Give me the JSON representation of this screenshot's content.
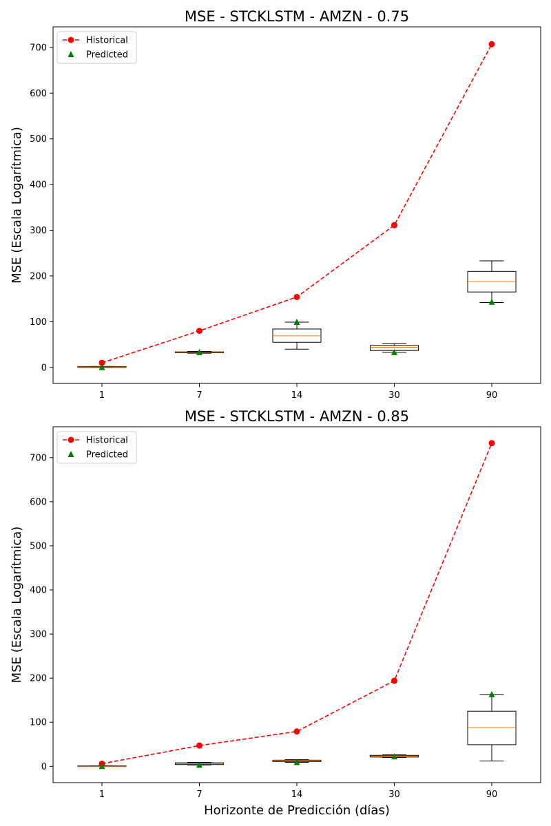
{
  "figure": {
    "xlabel": "Horizonte de Predicción (días)"
  },
  "colors": {
    "historical": "#ff0000",
    "predicted": "#008000",
    "median": "#ff7f0e",
    "box": "#000000"
  },
  "legend": {
    "placement": "top-left",
    "historical_label": "Historical",
    "predicted_label": "Predicted"
  },
  "chart_data": [
    {
      "type": "line",
      "title": "MSE - STCKLSTM - AMZN - 0.75",
      "ylabel": "MSE (Escala Logarítmica)",
      "xlabel": "",
      "categories": [
        "1",
        "7",
        "14",
        "30",
        "90"
      ],
      "ylim": [
        -35,
        745
      ],
      "yticks": [
        0,
        100,
        200,
        300,
        400,
        500,
        600,
        700
      ],
      "grid": false,
      "series": [
        {
          "name": "Historical",
          "style": "dashed-line-circle",
          "values": [
            10,
            80,
            154,
            311,
            707
          ]
        },
        {
          "name": "Predicted",
          "style": "triangle-markers",
          "values": [
            0,
            33,
            99,
            33,
            143
          ]
        }
      ],
      "boxplots": [
        {
          "category": "1",
          "whisker_low": 0,
          "q1": 0,
          "median": 1,
          "q3": 2,
          "whisker_high": 2
        },
        {
          "category": "7",
          "whisker_low": 31,
          "q1": 32,
          "median": 33,
          "q3": 34,
          "whisker_high": 35
        },
        {
          "category": "14",
          "whisker_low": 40,
          "q1": 55,
          "median": 69,
          "q3": 84,
          "whisker_high": 99
        },
        {
          "category": "30",
          "whisker_low": 33,
          "q1": 37,
          "median": 44,
          "q3": 48,
          "whisker_high": 52
        },
        {
          "category": "90",
          "whisker_low": 142,
          "q1": 165,
          "median": 188,
          "q3": 210,
          "whisker_high": 233
        }
      ]
    },
    {
      "type": "line",
      "title": "MSE - STCKLSTM - AMZN - 0.85",
      "ylabel": "MSE (Escala Logarítmica)",
      "xlabel": "Horizonte de Predicción (días)",
      "categories": [
        "1",
        "7",
        "14",
        "30",
        "90"
      ],
      "ylim": [
        -37,
        770
      ],
      "yticks": [
        0,
        100,
        200,
        300,
        400,
        500,
        600,
        700
      ],
      "grid": false,
      "series": [
        {
          "name": "Historical",
          "style": "dashed-line-circle",
          "values": [
            6,
            47,
            79,
            194,
            733
          ]
        },
        {
          "name": "Predicted",
          "style": "triangle-markers",
          "values": [
            0,
            3,
            9,
            22,
            163
          ]
        }
      ],
      "boxplots": [
        {
          "category": "1",
          "whisker_low": 0,
          "q1": 0,
          "median": 0,
          "q3": 1,
          "whisker_high": 1
        },
        {
          "category": "7",
          "whisker_low": 3,
          "q1": 4,
          "median": 6,
          "q3": 8,
          "whisker_high": 9
        },
        {
          "category": "14",
          "whisker_low": 9,
          "q1": 11,
          "median": 13,
          "q3": 14,
          "whisker_high": 15
        },
        {
          "category": "30",
          "whisker_low": 20,
          "q1": 21,
          "median": 23,
          "q3": 25,
          "whisker_high": 26
        },
        {
          "category": "90",
          "whisker_low": 12,
          "q1": 49,
          "median": 88,
          "q3": 125,
          "whisker_high": 163
        }
      ]
    }
  ]
}
